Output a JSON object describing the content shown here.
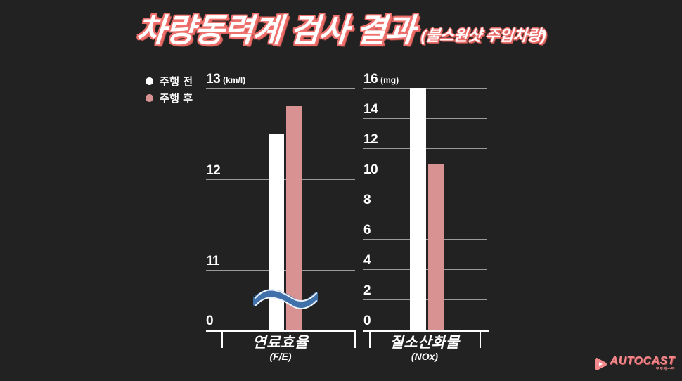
{
  "title": {
    "main": "차량동력계 검사 결과",
    "sub": "(불스원샷 주입차량)"
  },
  "legend": {
    "items": [
      {
        "label": "주행 전",
        "color": "#ffffff"
      },
      {
        "label": "주행 후",
        "color": "#d99292"
      }
    ]
  },
  "watermark": {
    "brand": "AUTOCAST",
    "tagline": "오토캐스트"
  },
  "colors": {
    "background_center": "#4377b2",
    "background_edge": "#33547e",
    "bar_before": "#ffffff",
    "bar_after": "#d99292",
    "gridline": "rgba(255,255,255,0.55)",
    "axis": "#ffffff",
    "title_fill": "#ffffff",
    "title_outline": "#ee706c",
    "logo_pink": "#f2898c"
  },
  "chart_data": [
    {
      "type": "bar",
      "title": "연료효율",
      "subtitle": "(F/E)",
      "unit": "(km/l)",
      "categories": [
        "주행 전",
        "주행 후"
      ],
      "values": [
        12.5,
        12.8
      ],
      "yticks": [
        13,
        12,
        11,
        0
      ],
      "ylim": [
        0,
        13
      ],
      "axis_break": true,
      "axis_break_between": [
        0,
        11
      ],
      "grid": true,
      "legend_position": "top-left"
    },
    {
      "type": "bar",
      "title": "질소산화물",
      "subtitle": "(NOx)",
      "unit": "(mg)",
      "categories": [
        "주행 전",
        "주행 후"
      ],
      "values": [
        16,
        11
      ],
      "yticks": [
        16,
        14,
        12,
        10,
        8,
        6,
        4,
        2,
        0
      ],
      "ylim": [
        0,
        16
      ],
      "axis_break": false,
      "grid": true,
      "legend_position": "top-left"
    }
  ]
}
